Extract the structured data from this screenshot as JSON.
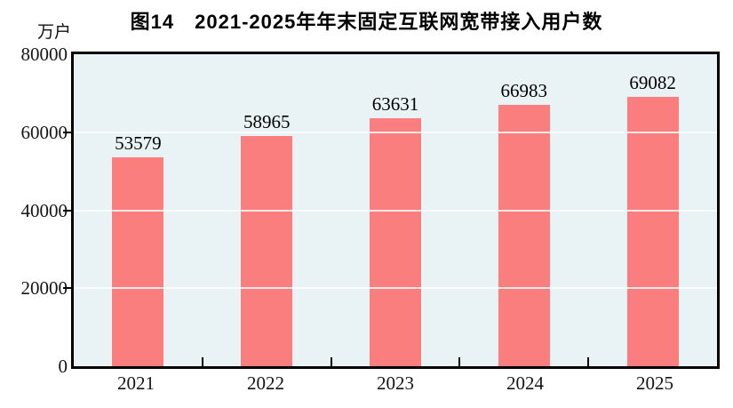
{
  "chart_data": {
    "type": "bar",
    "title": "图14　2021-2025年年末固定互联网宽带接入用户数",
    "unit": "万户",
    "categories": [
      "2021",
      "2022",
      "2023",
      "2024",
      "2025"
    ],
    "values": [
      53579,
      58965,
      63631,
      66983,
      69082
    ],
    "data_labels": [
      53579,
      58965,
      63631,
      66983,
      69082
    ],
    "xlabel": "",
    "ylabel": "万户",
    "ylim": [
      0,
      80000
    ],
    "yticks": [
      0,
      20000,
      40000,
      60000,
      80000
    ],
    "grid": true,
    "legend": "none",
    "colors": {
      "bar": "#FA7E7E",
      "plot_background": "#E9F2F4",
      "gridline": "#FFFFFF",
      "axis": "#000000",
      "text": "#000000"
    }
  }
}
